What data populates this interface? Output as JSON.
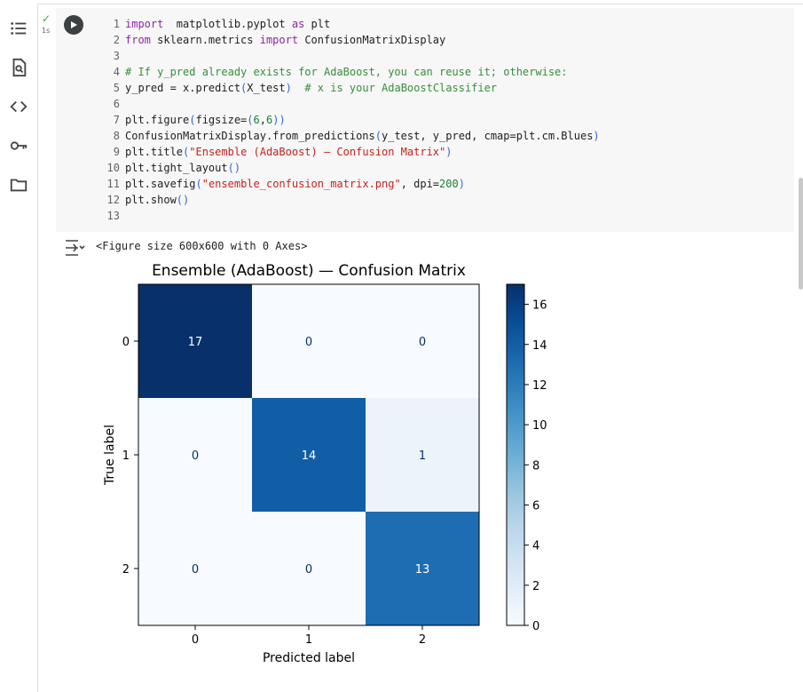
{
  "cell": {
    "exec_mark": "✓",
    "exec_time": "1s",
    "code_lines": [
      {
        "n": "1",
        "tokens": [
          [
            "kw",
            "import"
          ],
          [
            "",
            "  matplotlib.pyplot "
          ],
          [
            "kw",
            "as"
          ],
          [
            "",
            " plt"
          ]
        ]
      },
      {
        "n": "2",
        "tokens": [
          [
            "kw",
            "from"
          ],
          [
            "",
            " sklearn.metrics "
          ],
          [
            "kw",
            "import"
          ],
          [
            "",
            " ConfusionMatrixDisplay"
          ]
        ]
      },
      {
        "n": "3",
        "tokens": []
      },
      {
        "n": "4",
        "tokens": [
          [
            "cm",
            "# If y_pred already exists for AdaBoost, you can reuse it; otherwise:"
          ]
        ]
      },
      {
        "n": "5",
        "tokens": [
          [
            "",
            "y_pred = x.predict"
          ],
          [
            "pa",
            "("
          ],
          [
            "",
            "X_test"
          ],
          [
            "pa",
            ")"
          ],
          [
            "cm",
            "  # x is your AdaBoostClassifier"
          ]
        ]
      },
      {
        "n": "6",
        "tokens": []
      },
      {
        "n": "7",
        "tokens": [
          [
            "",
            "plt.figure"
          ],
          [
            "pa",
            "("
          ],
          [
            "",
            "figsize="
          ],
          [
            "pa",
            "("
          ],
          [
            "nm",
            "6"
          ],
          [
            "",
            ","
          ],
          [
            "nm",
            "6"
          ],
          [
            "pa",
            "))"
          ]
        ]
      },
      {
        "n": "8",
        "tokens": [
          [
            "",
            "ConfusionMatrixDisplay.from_predictions"
          ],
          [
            "pa",
            "("
          ],
          [
            "",
            "y_test, y_pred, cmap=plt.cm.Blues"
          ],
          [
            "pa",
            ")"
          ]
        ]
      },
      {
        "n": "9",
        "tokens": [
          [
            "",
            "plt.title"
          ],
          [
            "pa",
            "("
          ],
          [
            "st",
            "\"Ensemble (AdaBoost) — Confusion Matrix\""
          ],
          [
            "pa",
            ")"
          ]
        ]
      },
      {
        "n": "10",
        "tokens": [
          [
            "",
            "plt.tight_layout"
          ],
          [
            "pa",
            "()"
          ]
        ]
      },
      {
        "n": "11",
        "tokens": [
          [
            "",
            "plt.savefig"
          ],
          [
            "pa",
            "("
          ],
          [
            "st",
            "\"ensemble_confusion_matrix.png\""
          ],
          [
            "",
            ", dpi="
          ],
          [
            "nm",
            "200"
          ],
          [
            "pa",
            ")"
          ]
        ]
      },
      {
        "n": "12",
        "tokens": [
          [
            "",
            "plt.show"
          ],
          [
            "pa",
            "()"
          ]
        ]
      },
      {
        "n": "13",
        "tokens": []
      }
    ]
  },
  "output": {
    "text": "<Figure size 600x600 with 0 Axes>"
  },
  "chart_data": {
    "type": "heatmap",
    "title": "Ensemble (AdaBoost) — Confusion Matrix",
    "xlabel": "Predicted label",
    "ylabel": "True label",
    "x_ticks": [
      "0",
      "1",
      "2"
    ],
    "y_ticks": [
      "0",
      "1",
      "2"
    ],
    "matrix": [
      [
        17,
        0,
        0
      ],
      [
        0,
        14,
        1
      ],
      [
        0,
        0,
        13
      ]
    ],
    "colorbar": {
      "min": 0,
      "max": 17,
      "ticks": [
        0,
        2,
        4,
        6,
        8,
        10,
        12,
        14,
        16
      ],
      "cmap": "Blues"
    }
  }
}
